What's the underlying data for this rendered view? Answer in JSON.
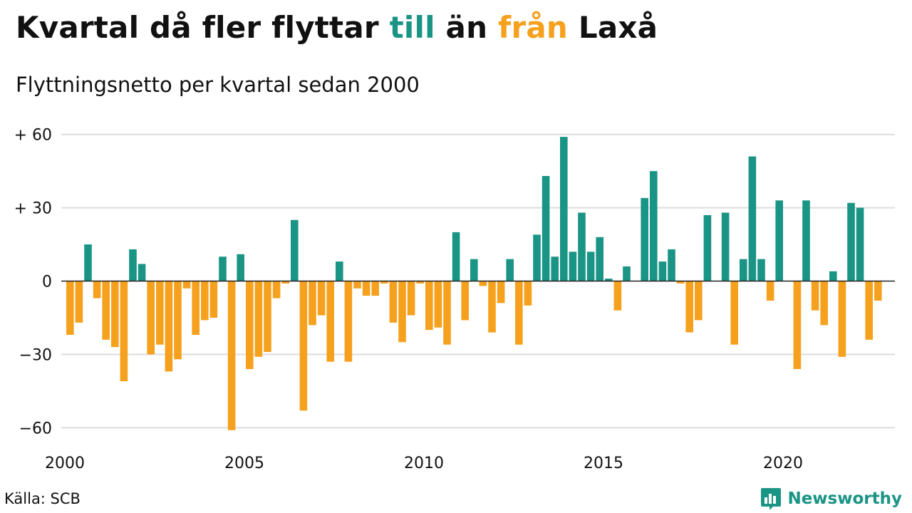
{
  "title": {
    "part1": "Kvartal då fler flyttar ",
    "word_in": "till",
    "part2": " än ",
    "word_out": "från",
    "part3": " Laxå"
  },
  "subtitle": "Flyttningsnetto per kvartal sedan 2000",
  "source": "Källa: SCB",
  "brand": "Newsworthy",
  "colors": {
    "positive": "#1a9485",
    "negative": "#f5a11e",
    "grid": "#dddddd",
    "zero": "#222222"
  },
  "chart_data": {
    "type": "bar",
    "title": "Kvartal då fler flyttar till än från Laxå",
    "subtitle": "Flyttningsnetto per kvartal sedan 2000",
    "ylim": [
      -65,
      60
    ],
    "yticks": [
      {
        "value": 60,
        "label": "+ 60"
      },
      {
        "value": 30,
        "label": "+ 30"
      },
      {
        "value": 0,
        "label": "0"
      },
      {
        "value": -30,
        "label": "−30"
      },
      {
        "value": -60,
        "label": "−60"
      }
    ],
    "xticks": [
      "2000",
      "2005",
      "2010",
      "2015",
      "2020"
    ],
    "grid": true,
    "start": "2000 Q1",
    "values": [
      -22,
      -17,
      15,
      -7,
      -24,
      -27,
      -41,
      13,
      7,
      -30,
      -26,
      -37,
      -32,
      -3,
      -22,
      -16,
      -15,
      10,
      -61,
      11,
      -36,
      -31,
      -29,
      -7,
      -1,
      25,
      -53,
      -18,
      -14,
      -33,
      8,
      -33,
      -3,
      -6,
      -6,
      -1,
      -17,
      -25,
      -14,
      -1,
      -20,
      -19,
      -26,
      20,
      -16,
      9,
      -2,
      -21,
      -9,
      9,
      -26,
      -10,
      19,
      43,
      10,
      59,
      12,
      28,
      12,
      18,
      1,
      -12,
      6,
      0,
      34,
      45,
      8,
      13,
      -1,
      -21,
      -16,
      27,
      0,
      28,
      -26,
      9,
      51,
      9,
      -8,
      33,
      0,
      -36,
      33,
      -12,
      -18,
      4,
      -31,
      32,
      30,
      -24,
      -8
    ]
  }
}
